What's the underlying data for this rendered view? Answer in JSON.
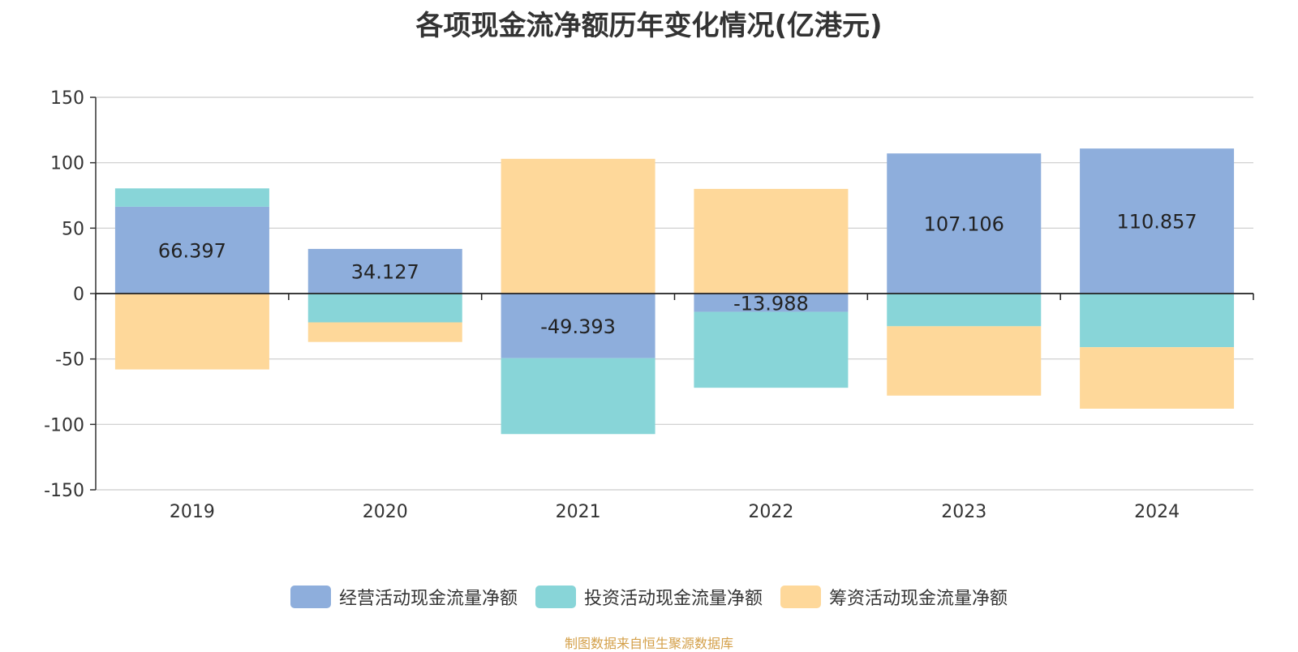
{
  "chart_data": {
    "type": "bar",
    "stacked": true,
    "title": "各项现金流净额历年变化情况(亿港元)",
    "categories": [
      "2019",
      "2020",
      "2021",
      "2022",
      "2023",
      "2024"
    ],
    "series": [
      {
        "name": "经营活动现金流量净额",
        "color": "#8eaedc",
        "values": [
          66.397,
          34.127,
          -49.393,
          -13.988,
          107.106,
          110.857
        ],
        "labels": [
          "66.397",
          "34.127",
          "-49.393",
          "-13.988",
          "107.106",
          "110.857"
        ]
      },
      {
        "name": "投资活动现金流量净额",
        "color": "#88d5d8",
        "values": [
          14,
          -22,
          -58,
          -58,
          -25,
          -41
        ]
      },
      {
        "name": "筹资活动现金流量净额",
        "color": "#fed89a",
        "values": [
          -58,
          -15,
          103,
          80,
          -53,
          -47
        ]
      }
    ],
    "ylim": [
      -150,
      150
    ],
    "yticks": [
      "150",
      "100",
      "50",
      "0",
      "-50",
      "-100",
      "-150"
    ],
    "grid": true,
    "legend_position": "bottom"
  },
  "source_note": "制图数据来自恒生聚源数据库"
}
